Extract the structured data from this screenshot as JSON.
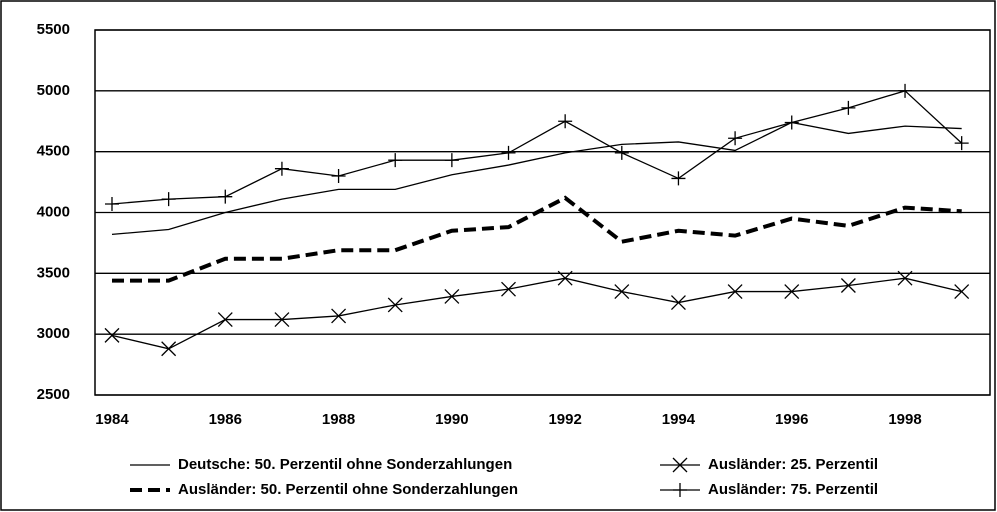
{
  "chart_data": {
    "type": "line",
    "x": [
      1984,
      1985,
      1986,
      1987,
      1988,
      1989,
      1990,
      1991,
      1992,
      1993,
      1994,
      1995,
      1996,
      1997,
      1998,
      1999
    ],
    "xlim": [
      1983.7,
      1999.5
    ],
    "xticks": [
      1984,
      1986,
      1988,
      1990,
      1992,
      1994,
      1996,
      1998
    ],
    "ylim": [
      2500,
      5500
    ],
    "yticks": [
      2500,
      3000,
      3500,
      4000,
      4500,
      5000,
      5500
    ],
    "grid": true,
    "legend": "bottom",
    "series": [
      {
        "name": "Deutsche: 50. Perzentil ohne Sonderzahlungen",
        "color": "#000000",
        "style": "solid",
        "marker": "none",
        "values": [
          3820,
          3860,
          4000,
          4110,
          4190,
          4190,
          4310,
          4390,
          4490,
          4560,
          4580,
          4510,
          4740,
          4650,
          4710,
          4690
        ]
      },
      {
        "name": "Ausländer: 25. Perzentil",
        "color": "#000000",
        "style": "solid",
        "marker": "x",
        "values": [
          2990,
          2880,
          3120,
          3120,
          3150,
          3240,
          3310,
          3370,
          3460,
          3350,
          3260,
          3350,
          3350,
          3400,
          3460,
          3350
        ]
      },
      {
        "name": "Ausländer: 50. Perzentil ohne Sonderzahlungen",
        "color": "#000000",
        "style": "dashed",
        "marker": "none",
        "values": [
          3440,
          3440,
          3620,
          3620,
          3690,
          3690,
          3850,
          3880,
          4120,
          3760,
          3850,
          3810,
          3950,
          3890,
          4040,
          4010
        ]
      },
      {
        "name": "Ausländer: 75. Perzentil",
        "color": "#000000",
        "style": "solid",
        "marker": "plus",
        "values": [
          4070,
          4110,
          4130,
          4360,
          4300,
          4430,
          4430,
          4490,
          4750,
          4490,
          4280,
          4610,
          4740,
          4860,
          5000,
          4570
        ]
      }
    ]
  }
}
